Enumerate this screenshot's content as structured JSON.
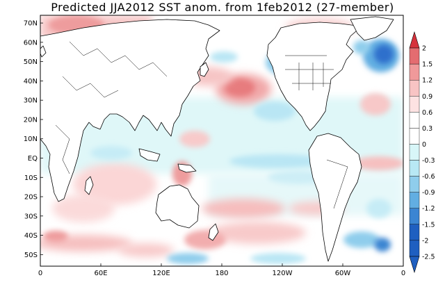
{
  "title": "Predicted JJA2012 SST anom. from 1feb2012 (27-member)",
  "map": {
    "lat_labels": [
      "70N",
      "60N",
      "50N",
      "40N",
      "30N",
      "20N",
      "10N",
      "EQ",
      "10S",
      "20S",
      "30S",
      "40S",
      "50S"
    ],
    "lon_labels": [
      "0",
      "60E",
      "120E",
      "180",
      "120W",
      "60W",
      "0"
    ],
    "lat_range": [
      -56,
      74
    ],
    "lon_range": [
      0,
      360
    ],
    "ocean_color": "#ffffff",
    "land_color": "#ffffff",
    "coast_color": "#000000"
  },
  "colorbar": {
    "levels": [
      "2",
      "1.5",
      "1.2",
      "0.9",
      "0.6",
      "0.3",
      "0",
      "-0.3",
      "-0.6",
      "-0.9",
      "-1.2",
      "-1.5",
      "-2",
      "-2.5"
    ],
    "colors": [
      "#d6323c",
      "#e46c70",
      "#f0999a",
      "#f8c4c4",
      "#fde2e2",
      "#ffffff",
      "#ffffff",
      "#d8f6f8",
      "#b8e8f4",
      "#8fcdec",
      "#62aee2",
      "#3b85d2",
      "#1f5fc0",
      "#1f5fc0"
    ]
  }
}
